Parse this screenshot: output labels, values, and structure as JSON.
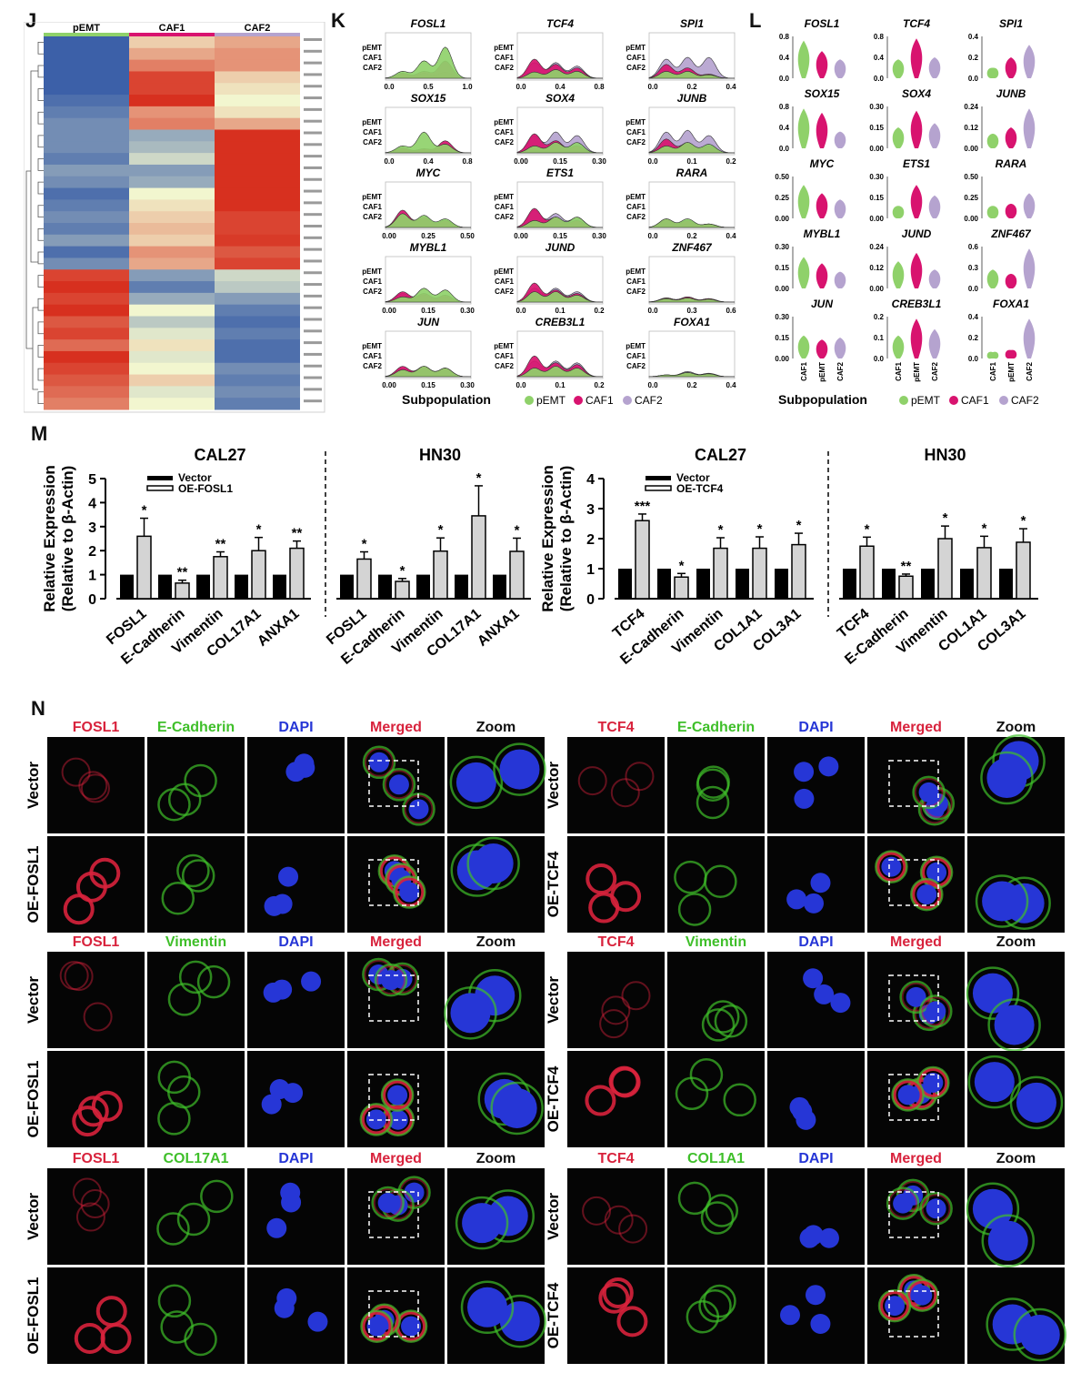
{
  "panels": {
    "J": "J",
    "K": "K",
    "L": "L",
    "M": "M",
    "N": "N"
  },
  "groups": [
    "pEMT",
    "CAF1",
    "CAF2"
  ],
  "colors": {
    "pEMT": "#8fd16a",
    "CAF1": "#d8136f",
    "CAF2": "#b5a3cf",
    "heat_low": "#3c60a8",
    "heat_mid": "#f2f6cf",
    "heat_high": "#d7301f"
  },
  "heatmap": {
    "rows": [
      [
        -1,
        0.2,
        0.4
      ],
      [
        -1,
        0.4,
        0.5
      ],
      [
        -1,
        0.6,
        0.5
      ],
      [
        -1,
        0.9,
        0.2
      ],
      [
        -1,
        0.9,
        0.1
      ],
      [
        -0.9,
        1,
        0
      ],
      [
        -0.8,
        0.5,
        0.1
      ],
      [
        -0.7,
        0.6,
        0.4
      ],
      [
        -0.7,
        -0.5,
        1
      ],
      [
        -0.7,
        -0.4,
        1
      ],
      [
        -0.8,
        -0.2,
        1
      ],
      [
        -0.6,
        -0.6,
        1
      ],
      [
        -0.7,
        -0.5,
        1
      ],
      [
        -0.9,
        0,
        1
      ],
      [
        -0.8,
        0.1,
        1
      ],
      [
        -0.7,
        0.2,
        0.9
      ],
      [
        -0.8,
        0.3,
        0.9
      ],
      [
        -0.6,
        0.2,
        0.95
      ],
      [
        -0.9,
        0.5,
        0.8
      ],
      [
        -0.7,
        0.4,
        0.9
      ],
      [
        0.9,
        -0.6,
        -0.2
      ],
      [
        1,
        -0.8,
        -0.3
      ],
      [
        0.9,
        -0.5,
        -0.6
      ],
      [
        1,
        0,
        -0.8
      ],
      [
        0.8,
        -0.3,
        -0.9
      ],
      [
        0.9,
        -0.1,
        -0.8
      ],
      [
        0.7,
        0.1,
        -0.9
      ],
      [
        1,
        -0.1,
        -0.9
      ],
      [
        0.9,
        0,
        -0.7
      ],
      [
        0.8,
        0.2,
        -0.8
      ],
      [
        0.7,
        -0.1,
        -0.7
      ],
      [
        0.6,
        0,
        -0.8
      ]
    ]
  },
  "ridge": {
    "legend_label": "Subpopulation",
    "genes": [
      {
        "name": "FOSL1",
        "ticks": [
          "0.0",
          "0.5",
          "1.0"
        ]
      },
      {
        "name": "TCF4",
        "ticks": [
          "0.0",
          "0.4",
          "0.8"
        ]
      },
      {
        "name": "SPI1",
        "ticks": [
          "0.0",
          "0.2",
          "0.4"
        ]
      },
      {
        "name": "SOX15",
        "ticks": [
          "0.0",
          "0.4",
          "0.8"
        ]
      },
      {
        "name": "SOX4",
        "ticks": [
          "0.00",
          "0.15",
          "0.30"
        ]
      },
      {
        "name": "JUNB",
        "ticks": [
          "0.0",
          "0.1",
          "0.2"
        ]
      },
      {
        "name": "MYC",
        "ticks": [
          "0.00",
          "0.25",
          "0.50"
        ]
      },
      {
        "name": "ETS1",
        "ticks": [
          "0.00",
          "0.15",
          "0.30"
        ]
      },
      {
        "name": "RARA",
        "ticks": [
          "0.0",
          "0.2",
          "0.4"
        ]
      },
      {
        "name": "MYBL1",
        "ticks": [
          "0.00",
          "0.15",
          "0.30"
        ]
      },
      {
        "name": "JUND",
        "ticks": [
          "0.0",
          "0.1",
          "0.2"
        ]
      },
      {
        "name": "ZNF467",
        "ticks": [
          "0.0",
          "0.3",
          "0.6"
        ]
      },
      {
        "name": "JUN",
        "ticks": [
          "0.00",
          "0.15",
          "0.30"
        ]
      },
      {
        "name": "CREB3L1",
        "ticks": [
          "0.0",
          "0.1",
          "0.2"
        ]
      },
      {
        "name": "FOXA1",
        "ticks": [
          "0.0",
          "0.2",
          "0.4"
        ]
      }
    ]
  },
  "violin": {
    "legend_label": "Subpopulation",
    "genes": [
      {
        "name": "FOSL1",
        "ticks": [
          "0.8",
          "0.4",
          "0.0"
        ]
      },
      {
        "name": "TCF4",
        "ticks": [
          "0.8",
          "0.4",
          "0.0"
        ]
      },
      {
        "name": "SPI1",
        "ticks": [
          "0.4",
          "0.2",
          "0.0"
        ]
      },
      {
        "name": "SOX15",
        "ticks": [
          "0.8",
          "0.4",
          "0.0"
        ]
      },
      {
        "name": "SOX4",
        "ticks": [
          "0.30",
          "0.15",
          "0.00"
        ]
      },
      {
        "name": "JUNB",
        "ticks": [
          "0.24",
          "0.12",
          "0.00"
        ]
      },
      {
        "name": "MYC",
        "ticks": [
          "0.50",
          "0.25",
          "0.00"
        ]
      },
      {
        "name": "ETS1",
        "ticks": [
          "0.30",
          "0.15",
          "0.00"
        ]
      },
      {
        "name": "RARA",
        "ticks": [
          "0.50",
          "0.25",
          "0.00"
        ]
      },
      {
        "name": "MYBL1",
        "ticks": [
          "0.30",
          "0.15",
          "0.00"
        ]
      },
      {
        "name": "JUND",
        "ticks": [
          "0.24",
          "0.12",
          "0.00"
        ]
      },
      {
        "name": "ZNF467",
        "ticks": [
          "0.6",
          "0.3",
          "0.0"
        ]
      },
      {
        "name": "JUN",
        "ticks": [
          "0.30",
          "0.15",
          "0.00"
        ]
      },
      {
        "name": "CREB3L1",
        "ticks": [
          "0.2",
          "0.1",
          "0.0"
        ]
      },
      {
        "name": "FOXA1",
        "ticks": [
          "0.4",
          "0.2",
          "0.0"
        ]
      }
    ],
    "xticks_first": [
      "CAF1",
      "pEMT",
      "CAF2"
    ]
  },
  "chart_data": [
    {
      "type": "bar",
      "ylabel": "Relative Expression (Relative to β-Actin)",
      "ylim": [
        0,
        5
      ],
      "yticks": [
        0,
        1,
        2,
        3,
        4,
        5
      ],
      "legend": [
        "Vector",
        "OE-FOSL1"
      ],
      "panels": [
        {
          "title": "CAL27",
          "categories": [
            "FOSL1",
            "E-Cadherin",
            "Vimentin",
            "COL17A1",
            "ANXA1"
          ],
          "series": [
            {
              "name": "Vector",
              "values": [
                1,
                1,
                1,
                1,
                1
              ]
            },
            {
              "name": "OE-FOSL1",
              "values": [
                2.6,
                0.65,
                1.75,
                2.0,
                2.1
              ],
              "errors": [
                0.75,
                0.12,
                0.2,
                0.55,
                0.3
              ]
            }
          ],
          "stars": [
            "*",
            "**",
            "**",
            "*",
            "**"
          ]
        },
        {
          "title": "HN30",
          "categories": [
            "FOSL1",
            "E-Cadherin",
            "Vimentin",
            "COL17A1",
            "ANXA1"
          ],
          "series": [
            {
              "name": "Vector",
              "values": [
                1,
                1,
                1,
                1,
                1
              ]
            },
            {
              "name": "OE-FOSL1",
              "values": [
                1.65,
                0.72,
                1.98,
                3.45,
                1.97
              ],
              "errors": [
                0.3,
                0.12,
                0.55,
                1.25,
                0.55
              ]
            }
          ],
          "stars": [
            "*",
            "*",
            "*",
            "*",
            "*"
          ]
        }
      ]
    },
    {
      "type": "bar",
      "ylabel": "Relative Expression (Relative to β-Actin)",
      "ylim": [
        0,
        4
      ],
      "yticks": [
        0,
        1,
        2,
        3,
        4
      ],
      "legend": [
        "Vector",
        "OE-TCF4"
      ],
      "panels": [
        {
          "title": "CAL27",
          "categories": [
            "TCF4",
            "E-Cadherin",
            "Vimentin",
            "COL1A1",
            "COL3A1"
          ],
          "series": [
            {
              "name": "Vector",
              "values": [
                1,
                1,
                1,
                1,
                1
              ]
            },
            {
              "name": "OE-TCF4",
              "values": [
                2.6,
                0.72,
                1.68,
                1.68,
                1.8
              ],
              "errors": [
                0.22,
                0.12,
                0.35,
                0.38,
                0.38
              ]
            }
          ],
          "stars": [
            "***",
            "*",
            "*",
            "*",
            "*"
          ]
        },
        {
          "title": "HN30",
          "categories": [
            "TCF4",
            "E-Cadherin",
            "Vimentin",
            "COL1A1",
            "COL3A1"
          ],
          "series": [
            {
              "name": "Vector",
              "values": [
                1,
                1,
                1,
                1,
                1
              ]
            },
            {
              "name": "OE-TCF4",
              "values": [
                1.75,
                0.75,
                2.0,
                1.7,
                1.88
              ],
              "errors": [
                0.3,
                0.07,
                0.42,
                0.38,
                0.45
              ]
            }
          ],
          "stars": [
            "*",
            "**",
            "*",
            "*",
            "*"
          ]
        }
      ]
    }
  ],
  "imaging": {
    "blocks": [
      {
        "gene": "FOSL1",
        "marker": "E-Cadherin",
        "rows": [
          "Vector",
          "OE-FOSL1"
        ]
      },
      {
        "gene": "TCF4",
        "marker": "E-Cadherin",
        "rows": [
          "Vector",
          "OE-TCF4"
        ]
      },
      {
        "gene": "FOSL1",
        "marker": "Vimentin",
        "rows": [
          "Vector",
          "OE-FOSL1"
        ]
      },
      {
        "gene": "TCF4",
        "marker": "Vimentin",
        "rows": [
          "Vector",
          "OE-TCF4"
        ]
      },
      {
        "gene": "FOSL1",
        "marker": "COL17A1",
        "rows": [
          "Vector",
          "OE-FOSL1"
        ]
      },
      {
        "gene": "TCF4",
        "marker": "COL1A1",
        "rows": [
          "Vector",
          "OE-TCF4"
        ]
      }
    ],
    "dapi": "DAPI",
    "merged": "Merged",
    "zoom": "Zoom"
  }
}
